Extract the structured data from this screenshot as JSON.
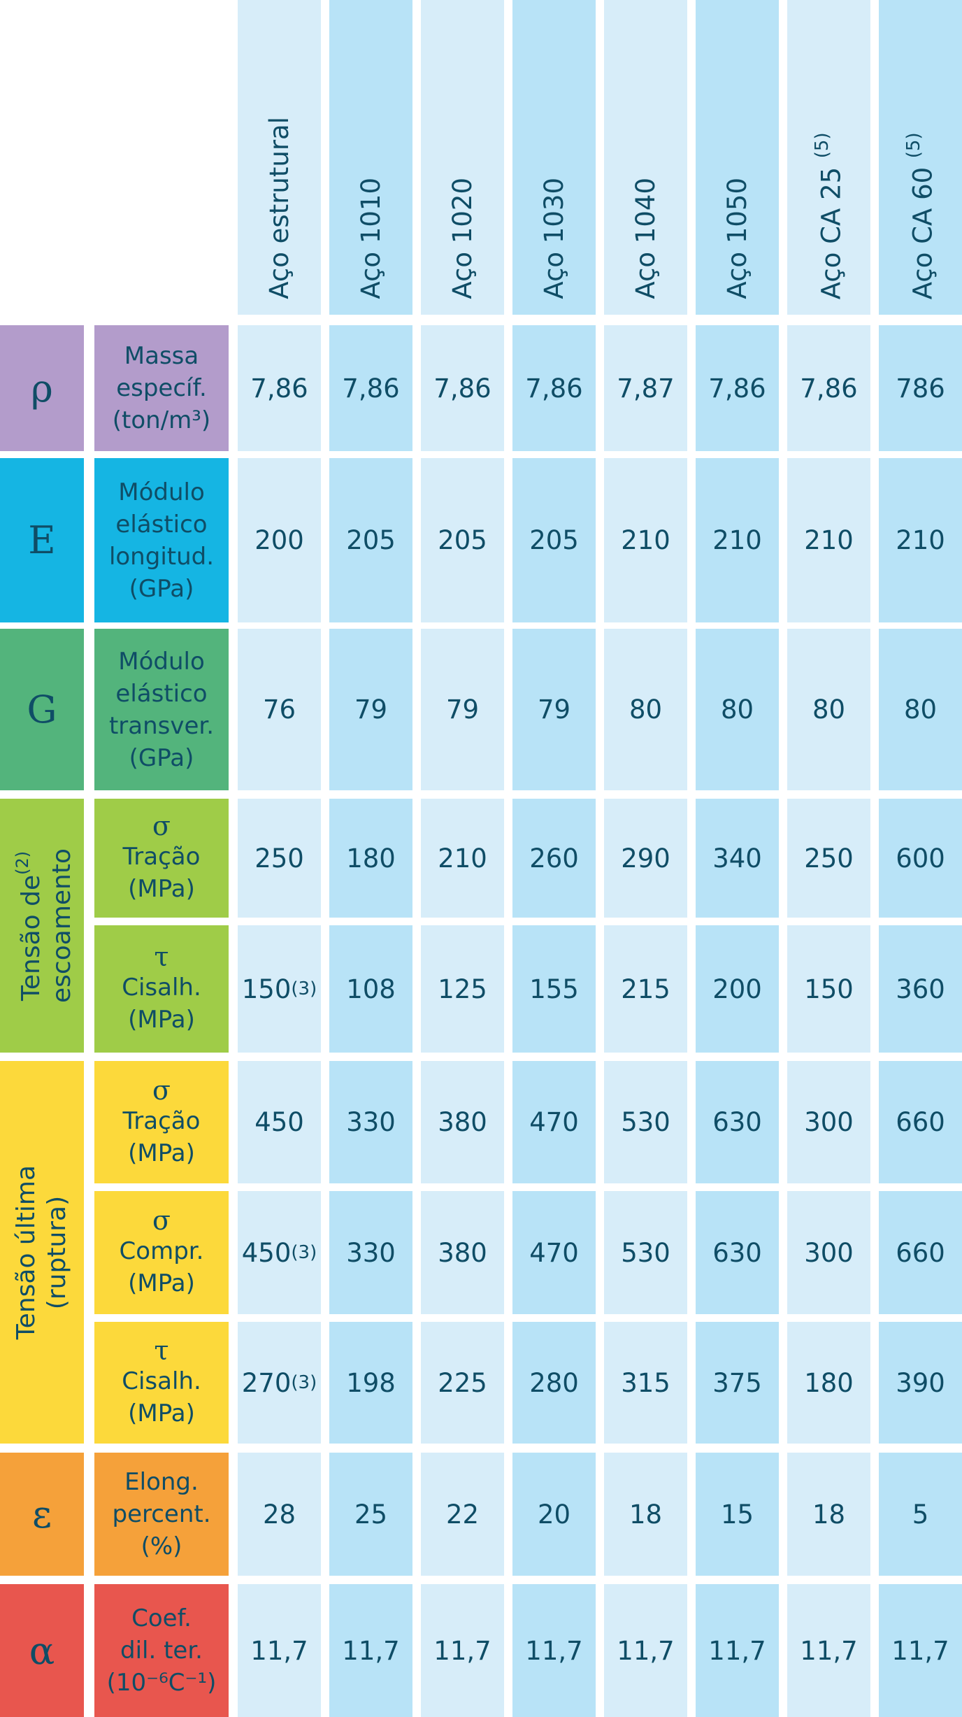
{
  "columns": [
    {
      "label": "Aço estrutural",
      "note": ""
    },
    {
      "label": "Aço 1010",
      "note": ""
    },
    {
      "label": "Aço 1020",
      "note": ""
    },
    {
      "label": "Aço 1030",
      "note": ""
    },
    {
      "label": "Aço 1040",
      "note": ""
    },
    {
      "label": "Aço 1050",
      "note": ""
    },
    {
      "label": "Aço CA 25",
      "note": "(5)"
    },
    {
      "label": "Aço CA 60",
      "note": "(5)"
    }
  ],
  "groups": [
    {
      "line1": "Tensão de",
      "sup": "(2)",
      "line2": "escoamento"
    },
    {
      "line1": "Tensão última",
      "sup": "",
      "line2": "(ruptura)"
    }
  ],
  "rows": [
    {
      "symbol": "ρ",
      "color": "#b39ccb",
      "greek": "",
      "label": [
        "Massa",
        "específ.",
        "(ton/m³)"
      ],
      "values": [
        "7,86",
        "7,86",
        "7,86",
        "7,86",
        "7,87",
        "7,86",
        "7,86",
        "786"
      ],
      "sups": [
        "",
        "",
        "",
        "",
        "",
        "",
        "",
        ""
      ]
    },
    {
      "symbol": "E",
      "color": "#15b5e3",
      "greek": "",
      "label": [
        "Módulo",
        "elástico",
        "longitud.",
        "(GPa)"
      ],
      "values": [
        "200",
        "205",
        "205",
        "205",
        "210",
        "210",
        "210",
        "210"
      ],
      "sups": [
        "",
        "",
        "",
        "",
        "",
        "",
        "",
        ""
      ]
    },
    {
      "symbol": "G",
      "color": "#53b47c",
      "greek": "",
      "label": [
        "Módulo",
        "elástico",
        "transver.",
        "(GPa)"
      ],
      "values": [
        "76",
        "79",
        "79",
        "79",
        "80",
        "80",
        "80",
        "80"
      ],
      "sups": [
        "",
        "",
        "",
        "",
        "",
        "",
        "",
        ""
      ]
    },
    {
      "symbol": "",
      "color": "#9fcc48",
      "greek": "σ",
      "label": [
        "Tração",
        "(MPa)"
      ],
      "values": [
        "250",
        "180",
        "210",
        "260",
        "290",
        "340",
        "250",
        "600"
      ],
      "sups": [
        "",
        "",
        "",
        "",
        "",
        "",
        "",
        ""
      ]
    },
    {
      "symbol": "",
      "color": "#9fcc48",
      "greek": "τ",
      "label": [
        "Cisalh.",
        "(MPa)"
      ],
      "values": [
        "150",
        "108",
        "125",
        "155",
        "215",
        "200",
        "150",
        "360"
      ],
      "sups": [
        "(3)",
        "",
        "",
        "",
        "",
        "",
        "",
        ""
      ]
    },
    {
      "symbol": "",
      "color": "#fcd93b",
      "greek": "σ",
      "label": [
        "Tração",
        "(MPa)"
      ],
      "values": [
        "450",
        "330",
        "380",
        "470",
        "530",
        "630",
        "300",
        "660"
      ],
      "sups": [
        "",
        "",
        "",
        "",
        "",
        "",
        "",
        ""
      ]
    },
    {
      "symbol": "",
      "color": "#fcd93b",
      "greek": "σ",
      "label": [
        "Compr.",
        "(MPa)"
      ],
      "values": [
        "450",
        "330",
        "380",
        "470",
        "530",
        "630",
        "300",
        "660"
      ],
      "sups": [
        "(3)",
        "",
        "",
        "",
        "",
        "",
        "",
        ""
      ]
    },
    {
      "symbol": "",
      "color": "#fcd93b",
      "greek": "τ",
      "label": [
        "Cisalh.",
        "(MPa)"
      ],
      "values": [
        "270",
        "198",
        "225",
        "280",
        "315",
        "375",
        "180",
        "390"
      ],
      "sups": [
        "(3)",
        "",
        "",
        "",
        "",
        "",
        "",
        ""
      ]
    },
    {
      "symbol": "ε",
      "color": "#f5a13a",
      "greek": "",
      "label": [
        "Elong.",
        "percent.",
        "(%)"
      ],
      "values": [
        "28",
        "25",
        "22",
        "20",
        "18",
        "15",
        "18",
        "5"
      ],
      "sups": [
        "",
        "",
        "",
        "",
        "",
        "",
        "",
        ""
      ]
    },
    {
      "symbol": "α",
      "color": "#e8564e",
      "greek": "",
      "label": [
        "Coef.",
        "dil. ter.",
        "(10⁻⁶C⁻¹)"
      ],
      "values": [
        "11,7",
        "11,7",
        "11,7",
        "11,7",
        "11,7",
        "11,7",
        "11,7",
        "11,7"
      ],
      "sups": [
        "",
        "",
        "",
        "",
        "",
        "",
        "",
        ""
      ]
    }
  ]
}
